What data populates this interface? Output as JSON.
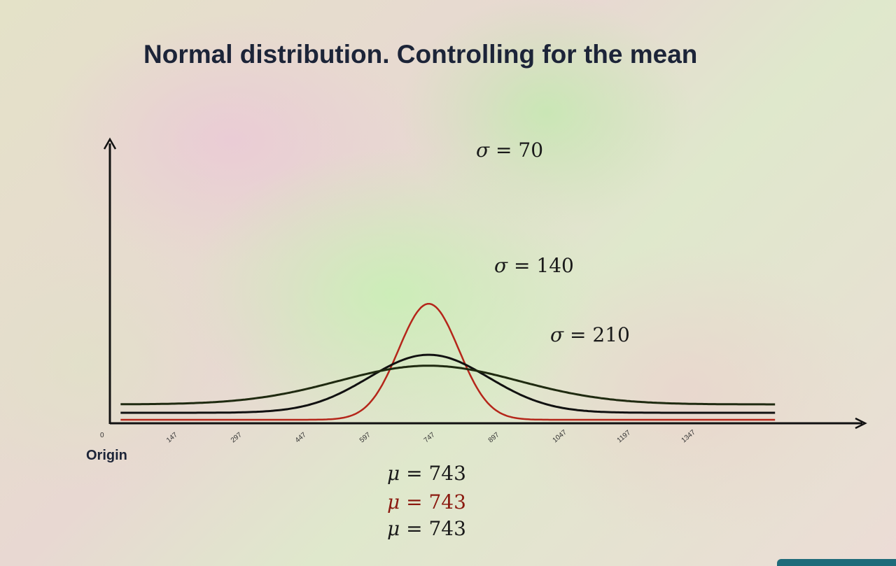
{
  "chart_data": {
    "type": "line",
    "title": "Normal distribution. Controlling for the mean",
    "origin_label": "Origin",
    "x_ticks": [
      "0",
      "147",
      "297",
      "447",
      "597",
      "747",
      "897",
      "1047",
      "1197",
      "1347"
    ],
    "series": [
      {
        "name": "σ = 70",
        "mean": 743,
        "sd": 70,
        "color": "#b5261a"
      },
      {
        "name": "σ = 140",
        "mean": 743,
        "sd": 140,
        "color": "#111111"
      },
      {
        "name": "σ = 210",
        "mean": 743,
        "sd": 210,
        "color": "#1f2a10"
      }
    ],
    "sigma_labels": [
      {
        "sym": "σ",
        "text": " = 70"
      },
      {
        "sym": "σ",
        "text": " = 140"
      },
      {
        "sym": "σ",
        "text": " = 210"
      }
    ],
    "mu_labels": [
      {
        "sym": "μ",
        "text": " = 743",
        "color": "#1a1a1a"
      },
      {
        "sym": "μ",
        "text": " = 743",
        "color": "#8b1a10"
      },
      {
        "sym": "μ",
        "text": " = 743",
        "color": "#1a1a1a"
      }
    ]
  }
}
